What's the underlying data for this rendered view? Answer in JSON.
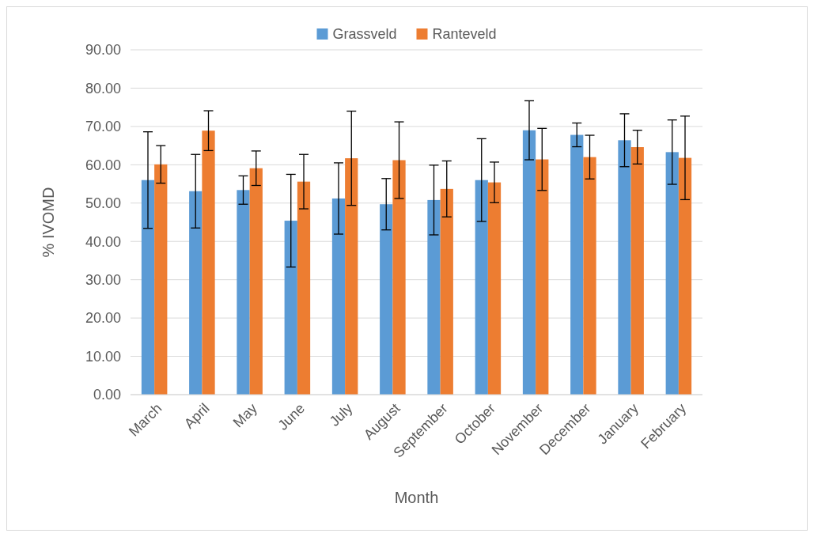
{
  "chart_data": {
    "type": "bar",
    "xlabel": "Month",
    "ylabel": "% IVOMD",
    "categories": [
      "March",
      "April",
      "May",
      "June",
      "July",
      "August",
      "September",
      "October",
      "November",
      "December",
      "January",
      "February"
    ],
    "series": [
      {
        "name": "Grassveld",
        "color": "#5b9bd5",
        "values": [
          56.0,
          53.1,
          53.4,
          45.4,
          51.2,
          49.7,
          50.8,
          56.0,
          69.0,
          67.8,
          66.4,
          63.3
        ],
        "errors": [
          12.6,
          9.6,
          3.7,
          12.1,
          9.3,
          6.7,
          9.1,
          10.8,
          7.7,
          3.1,
          6.9,
          8.4
        ]
      },
      {
        "name": "Ranteveld",
        "color": "#ed7d31",
        "values": [
          60.1,
          68.9,
          59.1,
          55.6,
          61.7,
          61.2,
          53.7,
          55.4,
          61.4,
          62.0,
          64.6,
          61.8
        ],
        "errors": [
          4.9,
          5.2,
          4.5,
          7.1,
          12.3,
          10.0,
          7.3,
          5.3,
          8.1,
          5.7,
          4.4,
          10.9
        ]
      }
    ],
    "ylim": [
      0,
      90
    ],
    "yticks": [
      {
        "value": 0,
        "label": "0.00"
      },
      {
        "value": 10,
        "label": "10.00"
      },
      {
        "value": 20,
        "label": "20.00"
      },
      {
        "value": 30,
        "label": "30.00"
      },
      {
        "value": 40,
        "label": "40.00"
      },
      {
        "value": 50,
        "label": "50.00"
      },
      {
        "value": 60,
        "label": "60.00"
      },
      {
        "value": 70,
        "label": "70.00"
      },
      {
        "value": 80,
        "label": "80.00"
      },
      {
        "value": 90,
        "label": "90.00"
      }
    ],
    "grid": "y",
    "legend": "top"
  }
}
